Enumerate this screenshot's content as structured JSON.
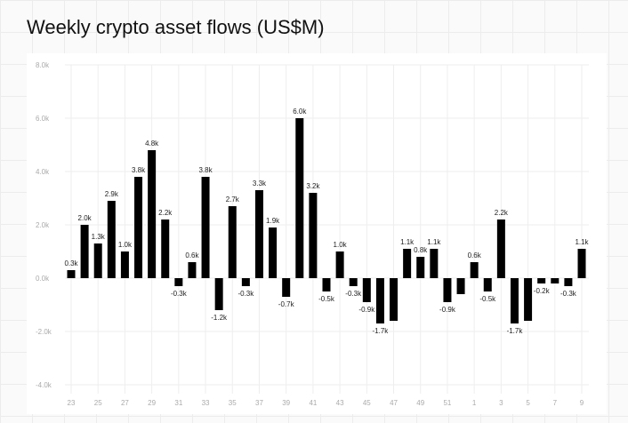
{
  "chart_data": {
    "type": "bar",
    "title": "Weekly crypto asset flows (US$M)",
    "xlabel": "",
    "ylabel": "",
    "ylim": [
      -4000,
      8000
    ],
    "yticks": [
      8000,
      6000,
      4000,
      2000,
      0,
      -2000,
      -4000
    ],
    "ytick_labels": [
      "8.0k",
      "6.0k",
      "4.0k",
      "2.0k",
      "0.0k",
      "-2.0k",
      "-4.0k"
    ],
    "grid": true,
    "categories": [
      "23",
      "24",
      "25",
      "26",
      "27",
      "28",
      "29",
      "30",
      "31",
      "32",
      "33",
      "34",
      "35",
      "36",
      "37",
      "38",
      "39",
      "40",
      "41",
      "42",
      "43",
      "44",
      "45",
      "46",
      "47",
      "48",
      "49",
      "50",
      "51",
      "52",
      "1",
      "2",
      "3",
      "4",
      "5",
      "6",
      "7",
      "8",
      "9"
    ],
    "xtick_labels": [
      "23",
      "25",
      "27",
      "29",
      "31",
      "33",
      "35",
      "37",
      "39",
      "41",
      "43",
      "45",
      "47",
      "49",
      "51",
      "1",
      "3",
      "5",
      "7",
      "9"
    ],
    "values": [
      300,
      2000,
      1300,
      2900,
      1000,
      3800,
      4800,
      2200,
      -300,
      600,
      3800,
      -1200,
      2700,
      -300,
      3300,
      1900,
      -700,
      6000,
      3200,
      -500,
      1000,
      -300,
      -900,
      -1700,
      -1600,
      1100,
      800,
      1100,
      -900,
      -600,
      600,
      -500,
      2200,
      -1700,
      -1600,
      -200,
      -200,
      -300,
      1100
    ],
    "data_labels": [
      "0.3k",
      "2.0k",
      "1.3k",
      "2.9k",
      "1.0k",
      "3.8k",
      "4.8k",
      "2.2k",
      "-0.3k",
      "0.6k",
      "3.8k",
      "-1.2k",
      "2.7k",
      "-0.3k",
      "3.3k",
      "1.9k",
      "-0.7k",
      "6.0k",
      "3.2k",
      "-0.5k",
      "1.0k",
      "-0.3k",
      "-0.9k",
      "-1.7k",
      null,
      "1.1k",
      "0.8k",
      "1.1k",
      "-0.9k",
      null,
      "0.6k",
      "-0.5k",
      "2.2k",
      "-1.7k",
      null,
      "-0.2k",
      null,
      "-0.3k",
      "1.1k"
    ],
    "bar_color": "#000000"
  }
}
